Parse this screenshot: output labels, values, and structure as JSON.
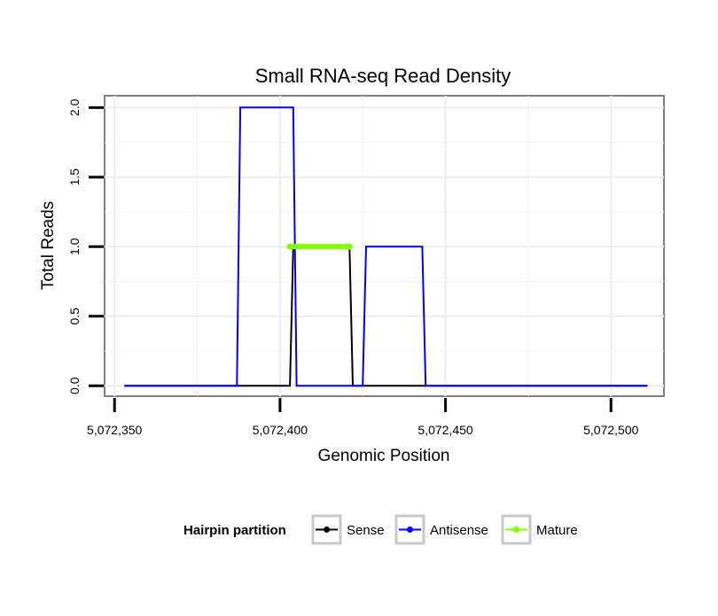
{
  "chart_data": {
    "type": "line",
    "title": "Small RNA-seq Read Density",
    "xlabel": "Genomic Position",
    "ylabel": "Total Reads",
    "xlim": [
      5072347,
      5072516
    ],
    "ylim": [
      -0.075,
      2.085
    ],
    "x_ticks": [
      5072350,
      5072400,
      5072450,
      5072500
    ],
    "x_tick_labels": [
      "5,072,350",
      "5,072,400",
      "5,072,450",
      "5,072,500"
    ],
    "y_ticks": [
      0,
      0.5,
      1,
      1.5,
      2
    ],
    "y_tick_labels": [
      "0.0",
      "0.5",
      "1.0",
      "1.5",
      "2.0"
    ],
    "grid": true,
    "legend_position": "bottom",
    "legend": {
      "title": "Hairpin partition",
      "items": [
        {
          "label": "Sense",
          "color": "#000000"
        },
        {
          "label": "Antisense",
          "color": "#0000ff"
        },
        {
          "label": "Mature",
          "color": "#7fff00"
        }
      ]
    },
    "series": [
      {
        "name": "Sense",
        "color": "#000000",
        "x": [
          5072353,
          5072403,
          5072404,
          5072421,
          5072422,
          5072511
        ],
        "y": [
          0,
          0,
          1,
          1,
          0,
          0
        ]
      },
      {
        "name": "Antisense",
        "color": "#0000ff",
        "x": [
          5072353,
          5072387,
          5072388,
          5072404,
          5072405,
          5072425,
          5072426,
          5072443,
          5072444,
          5072511
        ],
        "y": [
          0,
          0,
          2,
          2,
          0,
          0,
          1,
          1,
          0,
          0
        ]
      },
      {
        "name": "Mature",
        "color": "#7fff00",
        "x": [
          5072403,
          5072421
        ],
        "y": [
          1,
          1
        ]
      }
    ]
  }
}
